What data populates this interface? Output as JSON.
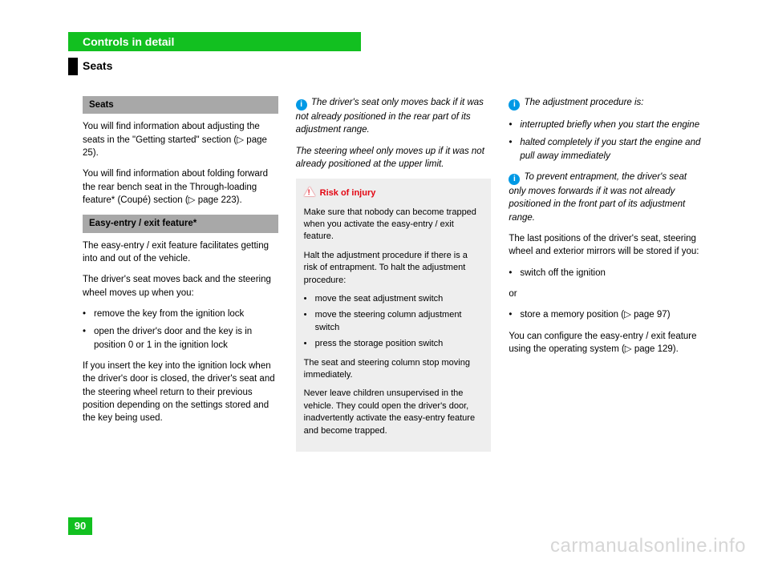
{
  "header": {
    "title": "Controls in detail"
  },
  "section": {
    "title": "Seats"
  },
  "page_number": "90",
  "watermark": "carmanualsonline.info",
  "col1": {
    "head1": "Seats",
    "p1": "You will find information about adjusting the seats in the \"Getting started\" section (▷ page 25).",
    "p2": "You will find information about folding forward the rear bench seat in the Through-loading feature* (Coupé) section (▷ page 223).",
    "head2": "Easy-entry / exit feature*",
    "p3": "The easy-entry / exit feature facilitates getting into and out of the vehicle.",
    "p4": "The driver's seat moves back and the steering wheel moves up when you:",
    "b1": "remove the key from the ignition lock",
    "b2": "open the driver's door and the key is in position 0 or 1 in the ignition lock",
    "p5": "If you insert the key into the ignition lock when the driver's door is closed, the driver's seat and the steering wheel return to their previous position depending on the settings stored and the key being used."
  },
  "col2": {
    "note1a": "The driver's seat only moves back if it was not already positioned in the rear part of its adjustment range.",
    "note1b": "The steering wheel only moves up if it was not already positioned at the upper limit.",
    "warn_title": "Risk of injury",
    "w1": "Make sure that nobody can become trapped when you activate the easy-entry / exit feature.",
    "w2": "Halt the adjustment procedure if there is a risk of entrapment. To halt the adjustment procedure:",
    "wb1": "move the seat adjustment switch",
    "wb2": "move the steering column adjustment switch",
    "wb3": "press the storage position switch",
    "w3": "The seat and steering column stop moving immediately.",
    "w4": "Never leave children unsupervised in the vehicle. They could open the driver's door, inadvertently activate the easy-entry feature and become trapped."
  },
  "col3": {
    "note2_lead": "The adjustment procedure is:",
    "note2_b1": "interrupted briefly when you start the engine",
    "note2_b2": "halted completely if you start the engine and pull away immediately",
    "note3": "To prevent entrapment, the driver's seat only moves forwards if it was not already positioned in the front part of its adjustment range.",
    "p1": "The last positions of the driver's seat, steering wheel and exterior mirrors will be stored if you:",
    "b1": "switch off the ignition",
    "or": "or",
    "b2": "store a memory position (▷ page 97)",
    "p2": "You can configure the easy-entry / exit feature using the operating system (▷ page 129)."
  },
  "colors": {
    "green": "#12c020",
    "gray": "#a8a8a8",
    "warn_bg": "#eeeeee",
    "info_blue": "#0099e5",
    "red": "#e30613",
    "watermark": "#d6d6d6"
  }
}
